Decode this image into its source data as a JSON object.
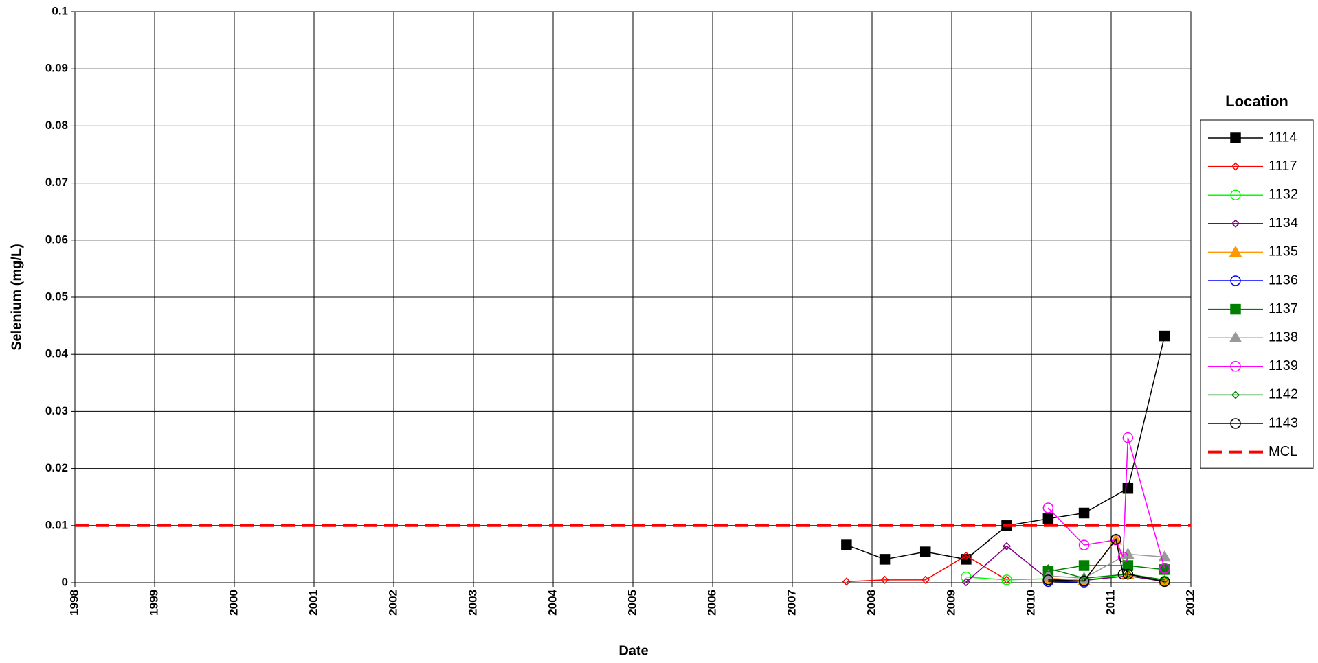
{
  "chart_data": {
    "type": "line",
    "xlabel": "Date",
    "ylabel": "Selenium (mg/L)",
    "legend_title": "Location",
    "xlim": [
      1998,
      2012
    ],
    "xticks": [
      1998,
      1999,
      2000,
      2001,
      2002,
      2003,
      2004,
      2005,
      2006,
      2007,
      2008,
      2009,
      2010,
      2011,
      2012
    ],
    "ylim": [
      0,
      0.1
    ],
    "yticks": [
      0,
      0.01,
      0.02,
      0.03,
      0.04,
      0.05,
      0.06,
      0.07,
      0.08,
      0.09,
      0.1
    ],
    "grid": true,
    "legend": "right",
    "series": [
      {
        "name": "1114",
        "color": "#000000",
        "marker": "square",
        "x": [
          2007.68,
          2008.16,
          2008.67,
          2009.18,
          2009.69,
          2010.21,
          2010.66,
          2011.21,
          2011.67
        ],
        "values": [
          0.0066,
          0.0041,
          0.0054,
          0.0041,
          0.01,
          0.0112,
          0.0122,
          0.0165,
          0.0432
        ]
      },
      {
        "name": "1117",
        "color": "#ff0000",
        "marker": "diamond",
        "x": [
          2007.68,
          2008.16,
          2008.67,
          2009.18,
          2009.69
        ],
        "values": [
          0.0002,
          0.0005,
          0.0005,
          0.0047,
          0.0005
        ]
      },
      {
        "name": "1132",
        "color": "#00ff00",
        "marker": "circle",
        "x": [
          2009.18,
          2009.69,
          2010.21,
          2010.66,
          2011.21,
          2011.67
        ],
        "values": [
          0.001,
          0.0005,
          0.0007,
          0.0004,
          0.0015,
          0.0003
        ]
      },
      {
        "name": "1134",
        "color": "#800080",
        "marker": "diamond",
        "x": [
          2009.18,
          2009.69,
          2010.21,
          2010.66,
          2011.21,
          2011.67
        ],
        "values": [
          0.0001,
          0.0064,
          0.0006,
          0.0004,
          0.0012,
          0.0002
        ]
      },
      {
        "name": "1135",
        "color": "#ff9900",
        "marker": "triangle",
        "x": [
          2010.21,
          2010.66,
          2011.06,
          2011.21,
          2011.67
        ],
        "values": [
          0.0008,
          0.0004,
          0.0075,
          0.0015,
          0.0003
        ]
      },
      {
        "name": "1136",
        "color": "#0000ff",
        "marker": "circle",
        "x": [
          2010.21,
          2010.66
        ],
        "values": [
          0.0002,
          0.0001
        ]
      },
      {
        "name": "1137",
        "color": "#008000",
        "marker": "square",
        "x": [
          2010.21,
          2010.66,
          2011.21,
          2011.67
        ],
        "values": [
          0.002,
          0.003,
          0.003,
          0.0023
        ]
      },
      {
        "name": "1138",
        "color": "#999999",
        "marker": "triangle",
        "x": [
          2010.21,
          2010.66,
          2011.21,
          2011.67
        ],
        "values": [
          0.0012,
          0.0008,
          0.005,
          0.0045
        ]
      },
      {
        "name": "1139",
        "color": "#ff00ff",
        "marker": "circle",
        "x": [
          2010.21,
          2010.66,
          2011.06,
          2011.15,
          2011.21,
          2011.67
        ],
        "values": [
          0.0131,
          0.0066,
          0.0075,
          0.0045,
          0.0254,
          0.0025
        ]
      },
      {
        "name": "1142",
        "color": "#008000",
        "marker": "diamond",
        "x": [
          2010.21,
          2010.66,
          2011.21,
          2011.67
        ],
        "values": [
          0.0025,
          0.0008,
          0.0015,
          0.0005
        ]
      },
      {
        "name": "1143",
        "color": "#000000",
        "marker": "circle",
        "x": [
          2010.21,
          2010.66,
          2011.06,
          2011.15,
          2011.21,
          2011.67
        ],
        "values": [
          0.0005,
          0.0003,
          0.0076,
          0.0015,
          0.0015,
          0.0002
        ]
      },
      {
        "name": "MCL",
        "color": "#ff0000",
        "marker": "none",
        "dash": true,
        "x": [
          1998,
          2012
        ],
        "values": [
          0.01,
          0.01
        ]
      }
    ]
  }
}
